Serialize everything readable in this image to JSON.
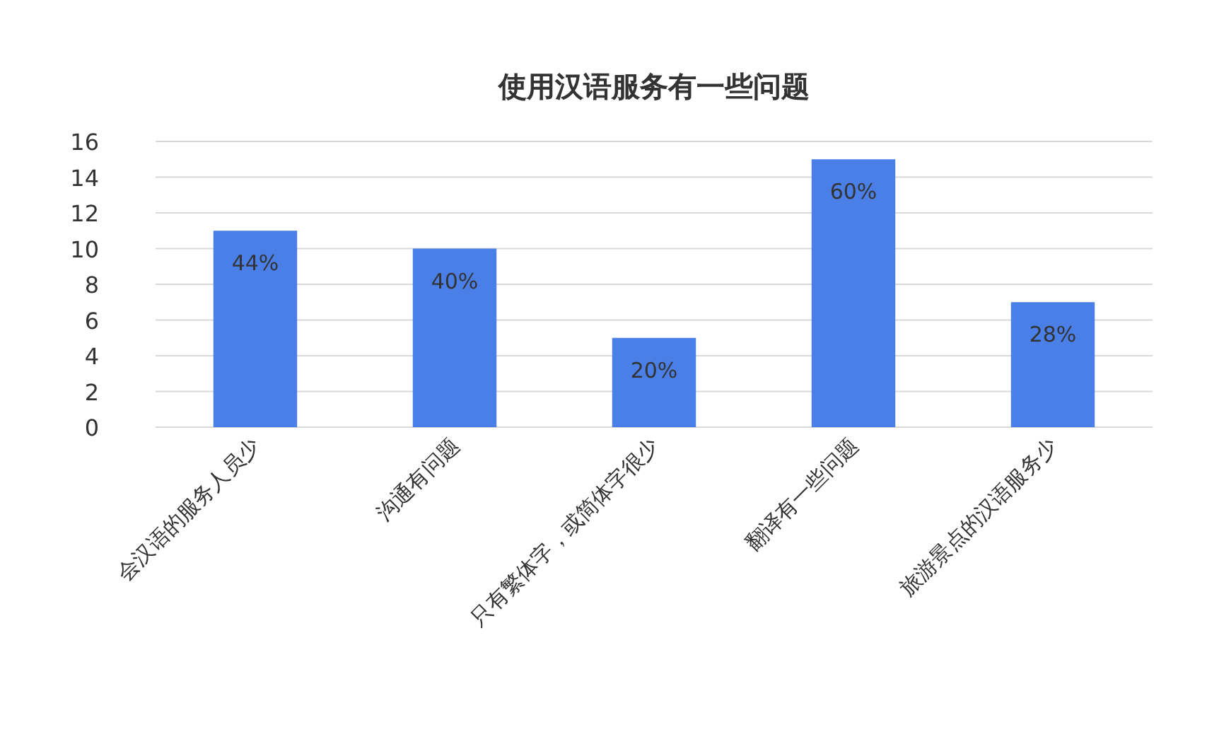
{
  "chart_data": {
    "type": "bar",
    "title": "使用汉语服务有一些问题",
    "categories": [
      "会汉语的服务人员少",
      "沟通有问题",
      "只有繁体字，或简体字很少",
      "翻译有一些问题",
      "旅游景点的汉语服务少"
    ],
    "values": [
      11,
      10,
      5,
      15,
      7
    ],
    "annotations": [
      {
        "text": "44%",
        "x": "会汉语的服务人员少",
        "y": 11
      },
      {
        "text": "40%",
        "x": "沟通有问题",
        "y": 10
      },
      {
        "text": "20%",
        "x": "只有繁体字，或简体字很少",
        "y": 5
      },
      {
        "text": "60%",
        "x": "翻译有一些问题",
        "y": 15
      },
      {
        "text": "28%",
        "x": "旅游景点的汉语服务少",
        "y": 7
      }
    ],
    "color": "#4a7fe8",
    "ylim": [
      0,
      16
    ],
    "yticks": [
      0,
      2,
      4,
      6,
      8,
      10,
      12,
      14,
      16
    ],
    "grid": "y"
  }
}
